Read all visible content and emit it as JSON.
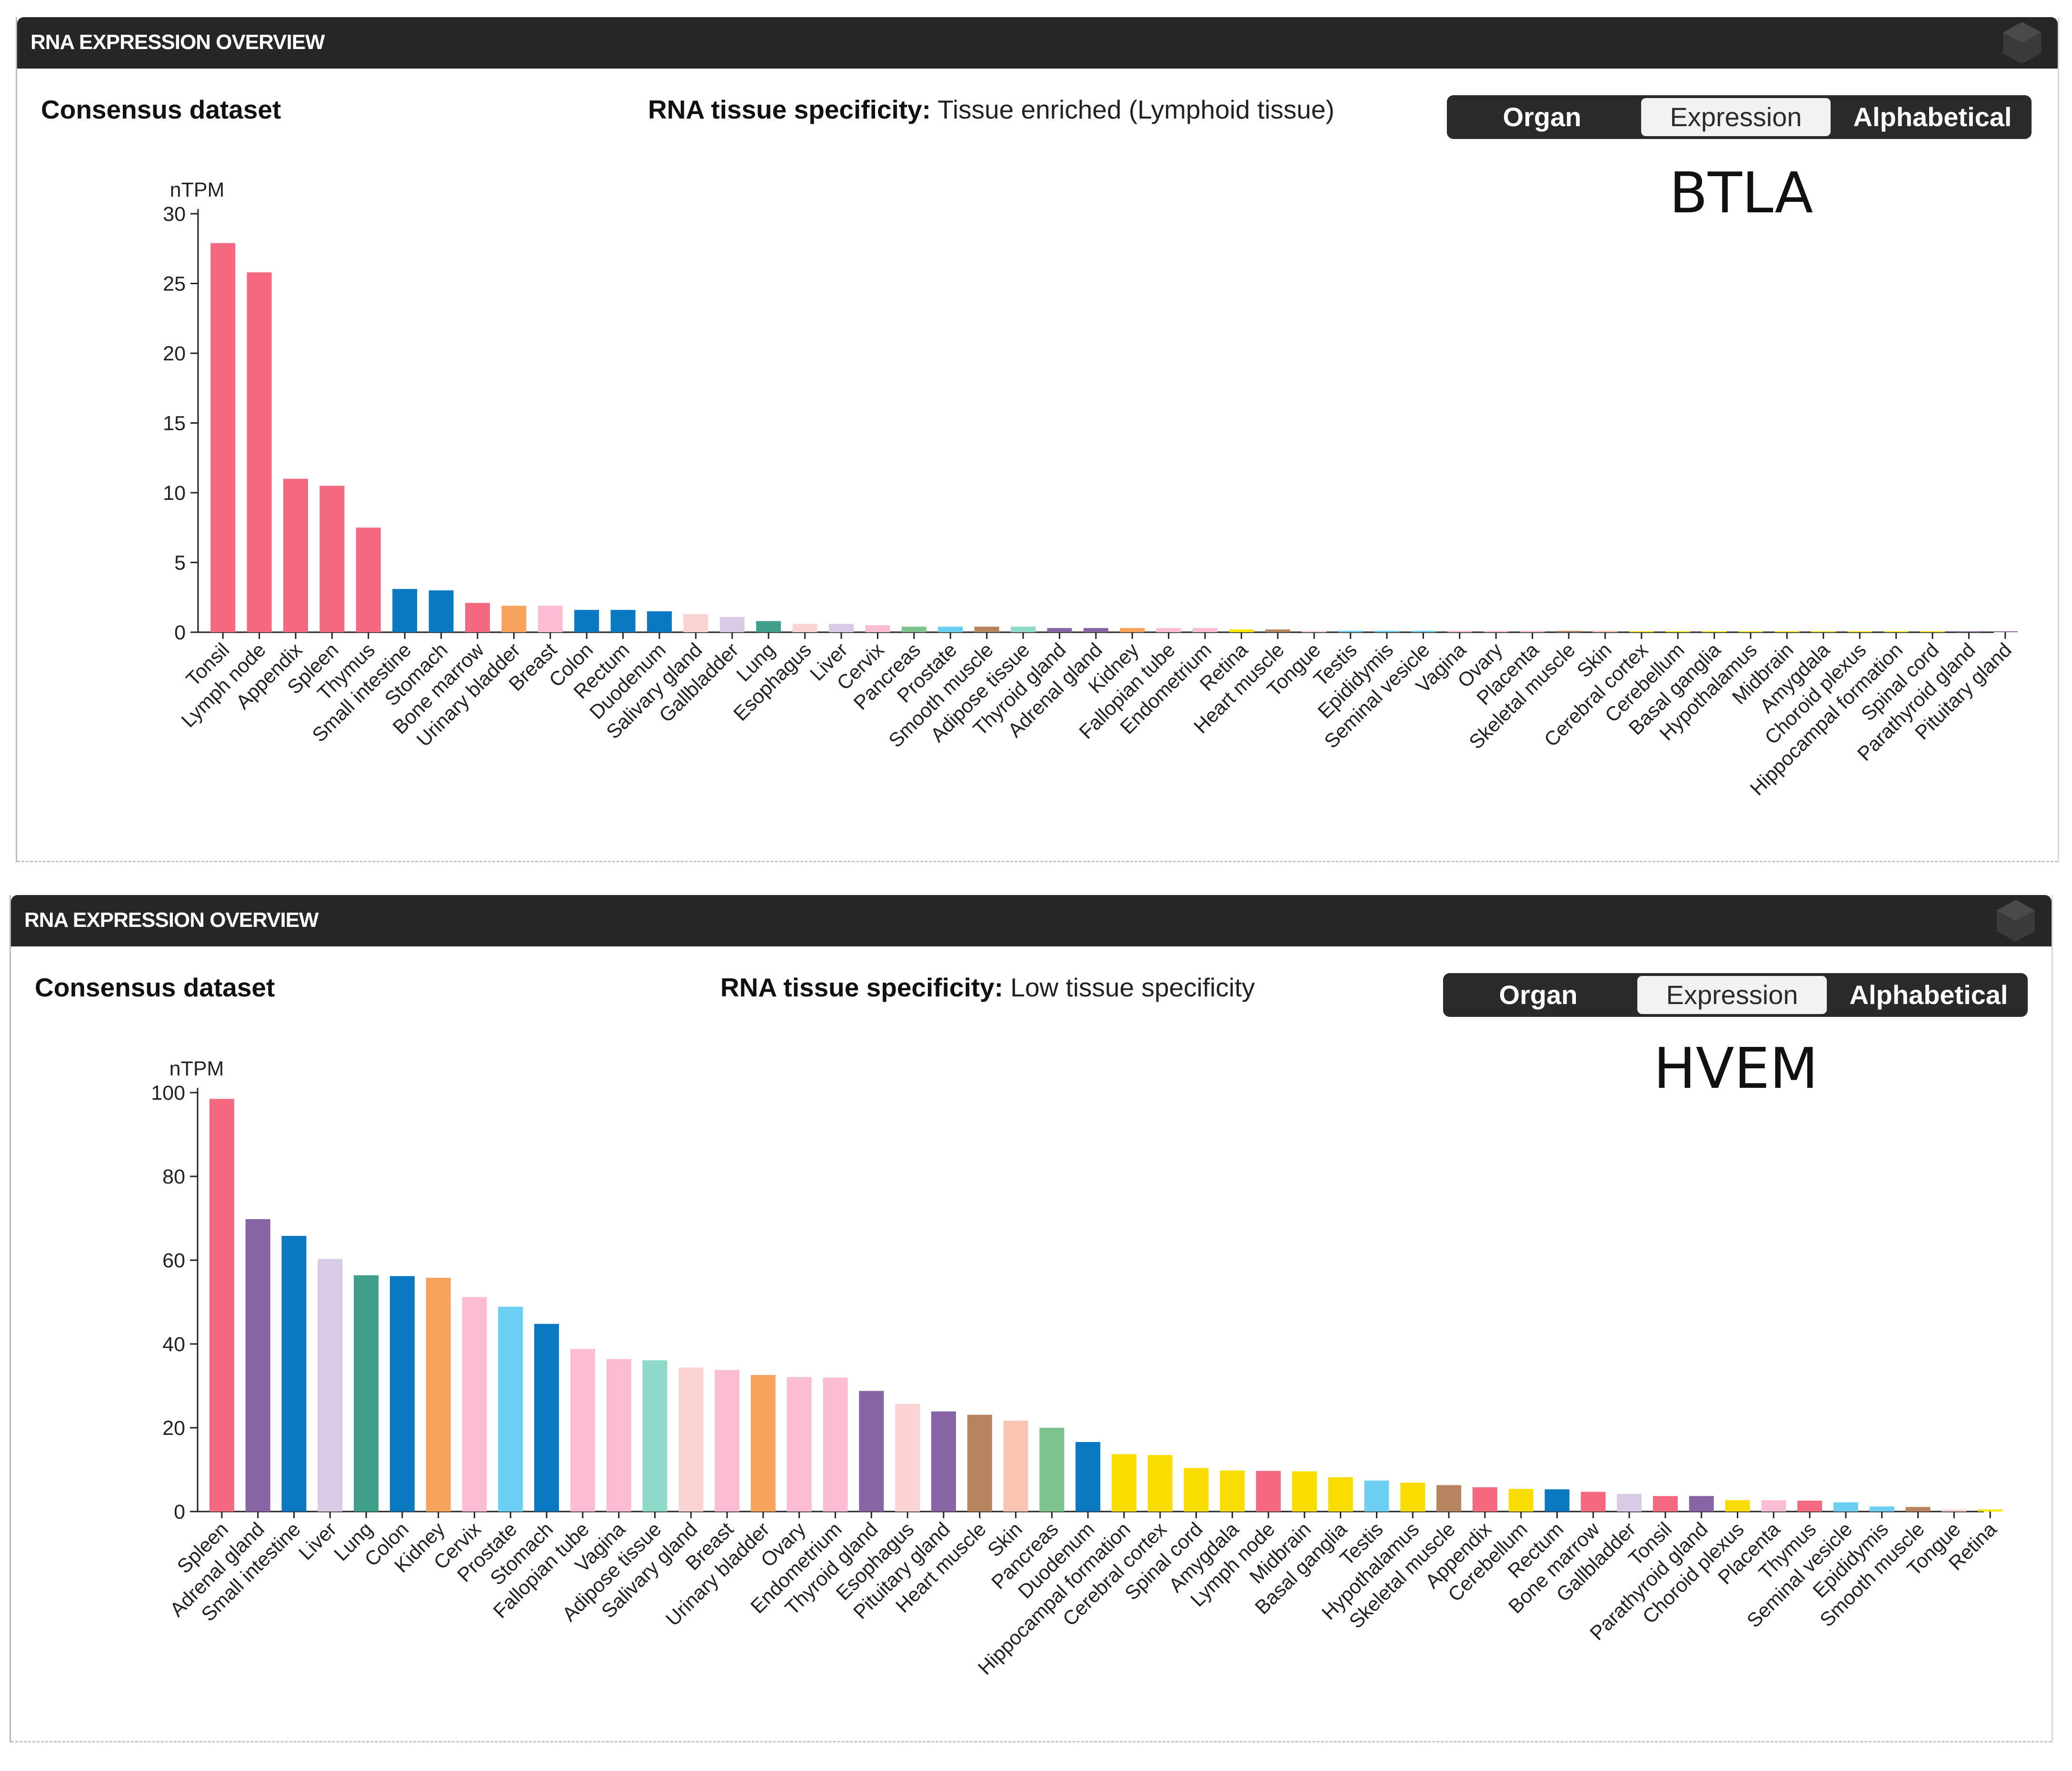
{
  "panels": [
    {
      "header_title": "RNA EXPRESSION OVERVIEW",
      "dataset_label": "Consensus dataset",
      "specificity_label": "RNA tissue specificity:",
      "specificity_value": "Tissue enriched (Lymphoid tissue)",
      "buttons": [
        {
          "label": "Organ",
          "active": false
        },
        {
          "label": "Expression",
          "active": true
        },
        {
          "label": "Alphabetical",
          "active": false
        }
      ],
      "gene_label": "BTLA"
    },
    {
      "header_title": "RNA EXPRESSION OVERVIEW",
      "dataset_label": "Consensus dataset",
      "specificity_label": "RNA tissue specificity:",
      "specificity_value": "Low tissue specificity",
      "buttons": [
        {
          "label": "Organ",
          "active": false
        },
        {
          "label": "Expression",
          "active": true
        },
        {
          "label": "Alphabetical",
          "active": false
        }
      ],
      "gene_label": "HVEM"
    }
  ],
  "colors": {
    "lymphoid": "#f4697f",
    "gastro": "#0b78c2",
    "bone_marrow": "#f4697f",
    "urinary": "#f7a35c",
    "breast": "#fbbcd4",
    "salivary": "#fcd3d3",
    "gallbladder": "#d7cbe6",
    "lung": "#3f9f89",
    "endocrine": "#8764a4",
    "kidney": "#f7a35c",
    "female": "#fbbcd4",
    "male": "#6ccff1",
    "adipose": "#8fd9c8",
    "muscle": "#b68560",
    "skin": "#fbc4b2",
    "pancreas": "#7ec28e",
    "brain": "#fadd00",
    "liver": "#d7cbe6",
    "retina": "#f7e200"
  },
  "chart_data": [
    {
      "type": "bar",
      "ylabel": "nTPM",
      "ylim": [
        0,
        30
      ],
      "yticks": [
        0,
        5,
        10,
        15,
        20,
        25,
        30
      ],
      "categories": [
        "Tonsil",
        "Lymph node",
        "Appendix",
        "Spleen",
        "Thymus",
        "Small intestine",
        "Stomach",
        "Bone marrow",
        "Urinary bladder",
        "Breast",
        "Colon",
        "Rectum",
        "Duodenum",
        "Salivary gland",
        "Gallbladder",
        "Lung",
        "Esophagus",
        "Liver",
        "Cervix",
        "Pancreas",
        "Prostate",
        "Smooth muscle",
        "Adipose tissue",
        "Thyroid gland",
        "Adrenal gland",
        "Kidney",
        "Fallopian tube",
        "Endometrium",
        "Retina",
        "Heart muscle",
        "Tongue",
        "Testis",
        "Epididymis",
        "Seminal vesicle",
        "Vagina",
        "Ovary",
        "Placenta",
        "Skeletal muscle",
        "Skin",
        "Cerebral cortex",
        "Cerebellum",
        "Basal ganglia",
        "Hypothalamus",
        "Midbrain",
        "Amygdala",
        "Choroid plexus",
        "Hippocampal formation",
        "Spinal cord",
        "Parathyroid gland",
        "Pituitary gland"
      ],
      "values": [
        27.9,
        25.8,
        11.0,
        10.5,
        7.5,
        3.1,
        3.0,
        2.1,
        1.9,
        1.9,
        1.6,
        1.6,
        1.5,
        1.3,
        1.1,
        0.8,
        0.6,
        0.6,
        0.5,
        0.4,
        0.4,
        0.4,
        0.4,
        0.3,
        0.3,
        0.3,
        0.3,
        0.3,
        0.2,
        0.2,
        0.1,
        0.1,
        0.1,
        0.1,
        0.1,
        0.1,
        0.1,
        0.1,
        0.1,
        0.05,
        0.05,
        0.05,
        0.05,
        0.05,
        0.05,
        0.05,
        0.05,
        0.05,
        0.05,
        0.05
      ],
      "colors": [
        "#f4697f",
        "#f4697f",
        "#f4697f",
        "#f4697f",
        "#f4697f",
        "#0b78c2",
        "#0b78c2",
        "#f4697f",
        "#f7a35c",
        "#fbbcd4",
        "#0b78c2",
        "#0b78c2",
        "#0b78c2",
        "#fcd3d3",
        "#d7cbe6",
        "#3f9f89",
        "#fcd3d3",
        "#d7cbe6",
        "#fbbcd4",
        "#7ec28e",
        "#6ccff1",
        "#b68560",
        "#8fd9c8",
        "#8764a4",
        "#8764a4",
        "#f7a35c",
        "#fbbcd4",
        "#fbbcd4",
        "#f7e200",
        "#b68560",
        "#fcd3d3",
        "#6ccff1",
        "#6ccff1",
        "#6ccff1",
        "#fbbcd4",
        "#fbbcd4",
        "#fbbcd4",
        "#b68560",
        "#fbc4b2",
        "#fadd00",
        "#fadd00",
        "#fadd00",
        "#fadd00",
        "#fadd00",
        "#fadd00",
        "#fadd00",
        "#fadd00",
        "#fadd00",
        "#8764a4",
        "#8764a4"
      ]
    },
    {
      "type": "bar",
      "ylabel": "nTPM",
      "ylim": [
        0,
        100
      ],
      "yticks": [
        0,
        20,
        40,
        60,
        80,
        100
      ],
      "categories": [
        "Spleen",
        "Adrenal gland",
        "Small intestine",
        "Liver",
        "Lung",
        "Colon",
        "Kidney",
        "Cervix",
        "Prostate",
        "Stomach",
        "Fallopian tube",
        "Vagina",
        "Adipose tissue",
        "Salivary gland",
        "Breast",
        "Urinary bladder",
        "Ovary",
        "Endometrium",
        "Thyroid gland",
        "Esophagus",
        "Pituitary gland",
        "Heart muscle",
        "Skin",
        "Pancreas",
        "Duodenum",
        "Hippocampal formation",
        "Cerebral cortex",
        "Spinal cord",
        "Amygdala",
        "Lymph node",
        "Midbrain",
        "Basal ganglia",
        "Testis",
        "Hypothalamus",
        "Skeletal muscle",
        "Appendix",
        "Cerebellum",
        "Rectum",
        "Bone marrow",
        "Gallbladder",
        "Tonsil",
        "Parathyroid gland",
        "Choroid plexus",
        "Placenta",
        "Thymus",
        "Seminal vesicle",
        "Epididymis",
        "Smooth muscle",
        "Tongue",
        "Retina"
      ],
      "values": [
        98.5,
        69.8,
        65.8,
        60.3,
        56.4,
        56.2,
        55.8,
        51.2,
        48.9,
        44.8,
        38.8,
        36.4,
        36.1,
        34.4,
        33.8,
        32.6,
        32.1,
        32.0,
        28.8,
        25.7,
        23.9,
        23.1,
        21.7,
        20.0,
        16.6,
        13.7,
        13.5,
        10.4,
        9.8,
        9.7,
        9.6,
        8.2,
        7.4,
        6.9,
        6.3,
        5.8,
        5.4,
        5.3,
        4.7,
        4.2,
        3.7,
        3.7,
        2.7,
        2.7,
        2.6,
        2.2,
        1.2,
        1.1,
        0.5,
        0.5
      ],
      "colors": [
        "#f4697f",
        "#8764a4",
        "#0b78c2",
        "#d7cbe6",
        "#3f9f89",
        "#0b78c2",
        "#f7a35c",
        "#fbbcd4",
        "#6ccff1",
        "#0b78c2",
        "#fbbcd4",
        "#fbbcd4",
        "#8fd9c8",
        "#fcd3d3",
        "#fbbcd4",
        "#f7a35c",
        "#fbbcd4",
        "#fbbcd4",
        "#8764a4",
        "#fcd3d3",
        "#8764a4",
        "#b68560",
        "#fbc4b2",
        "#7ec28e",
        "#0b78c2",
        "#fadd00",
        "#fadd00",
        "#fadd00",
        "#fadd00",
        "#f4697f",
        "#fadd00",
        "#fadd00",
        "#6ccff1",
        "#fadd00",
        "#b68560",
        "#f4697f",
        "#fadd00",
        "#0b78c2",
        "#f4697f",
        "#d7cbe6",
        "#f4697f",
        "#8764a4",
        "#fadd00",
        "#fbbcd4",
        "#f4697f",
        "#6ccff1",
        "#6ccff1",
        "#b68560",
        "#fcd3d3",
        "#f7e200"
      ]
    }
  ]
}
